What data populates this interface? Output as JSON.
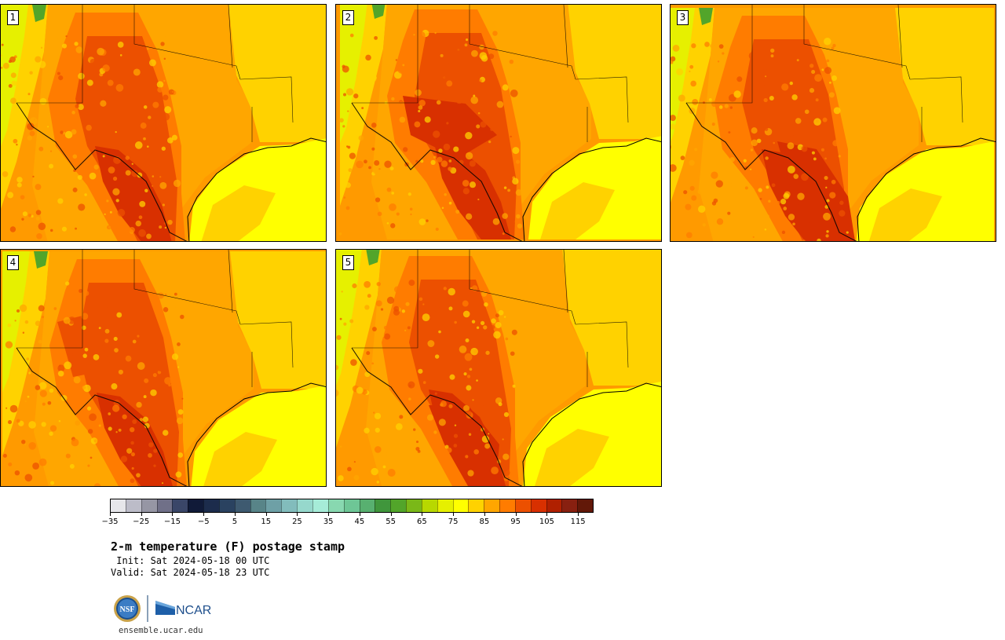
{
  "panels": [
    {
      "label": "1",
      "variant": 1
    },
    {
      "label": "2",
      "variant": 2
    },
    {
      "label": "3",
      "variant": 3
    },
    {
      "label": "4",
      "variant": 4
    },
    {
      "label": "5",
      "variant": 5
    }
  ],
  "colorbar": {
    "colors": [
      "#e6e6ea",
      "#bcbcc8",
      "#9696a4",
      "#707088",
      "#3a4668",
      "#101a38",
      "#1c2c4c",
      "#2a4260",
      "#3e5a70",
      "#588488",
      "#6ea0a6",
      "#82bcbc",
      "#96d8cc",
      "#a6ecd8",
      "#88d8b0",
      "#6ec696",
      "#58b070",
      "#40963c",
      "#52a52a",
      "#7ab818",
      "#b8d800",
      "#e6f000",
      "#ffff00",
      "#ffd200",
      "#ffa600",
      "#ff7c00",
      "#ec5000",
      "#d83000",
      "#b02000",
      "#882010",
      "#621808"
    ],
    "ticks": [
      "−35",
      "−25",
      "−15",
      "−5",
      "5",
      "15",
      "25",
      "35",
      "45",
      "55",
      "65",
      "75",
      "85",
      "95",
      "105",
      "115"
    ],
    "tick_values": [
      -35,
      -25,
      -15,
      -5,
      5,
      15,
      25,
      35,
      45,
      55,
      65,
      75,
      85,
      95,
      105,
      115
    ],
    "min": -35,
    "max": 120
  },
  "title": "2-m temperature (F) postage stamp",
  "init": " Init: Sat 2024-05-18 00 UTC",
  "valid": "Valid: Sat 2024-05-18 23 UTC",
  "logos": {
    "nsf_text": "NSF",
    "ncar_text": "NCAR"
  },
  "site": "ensemble.ucar.edu"
}
